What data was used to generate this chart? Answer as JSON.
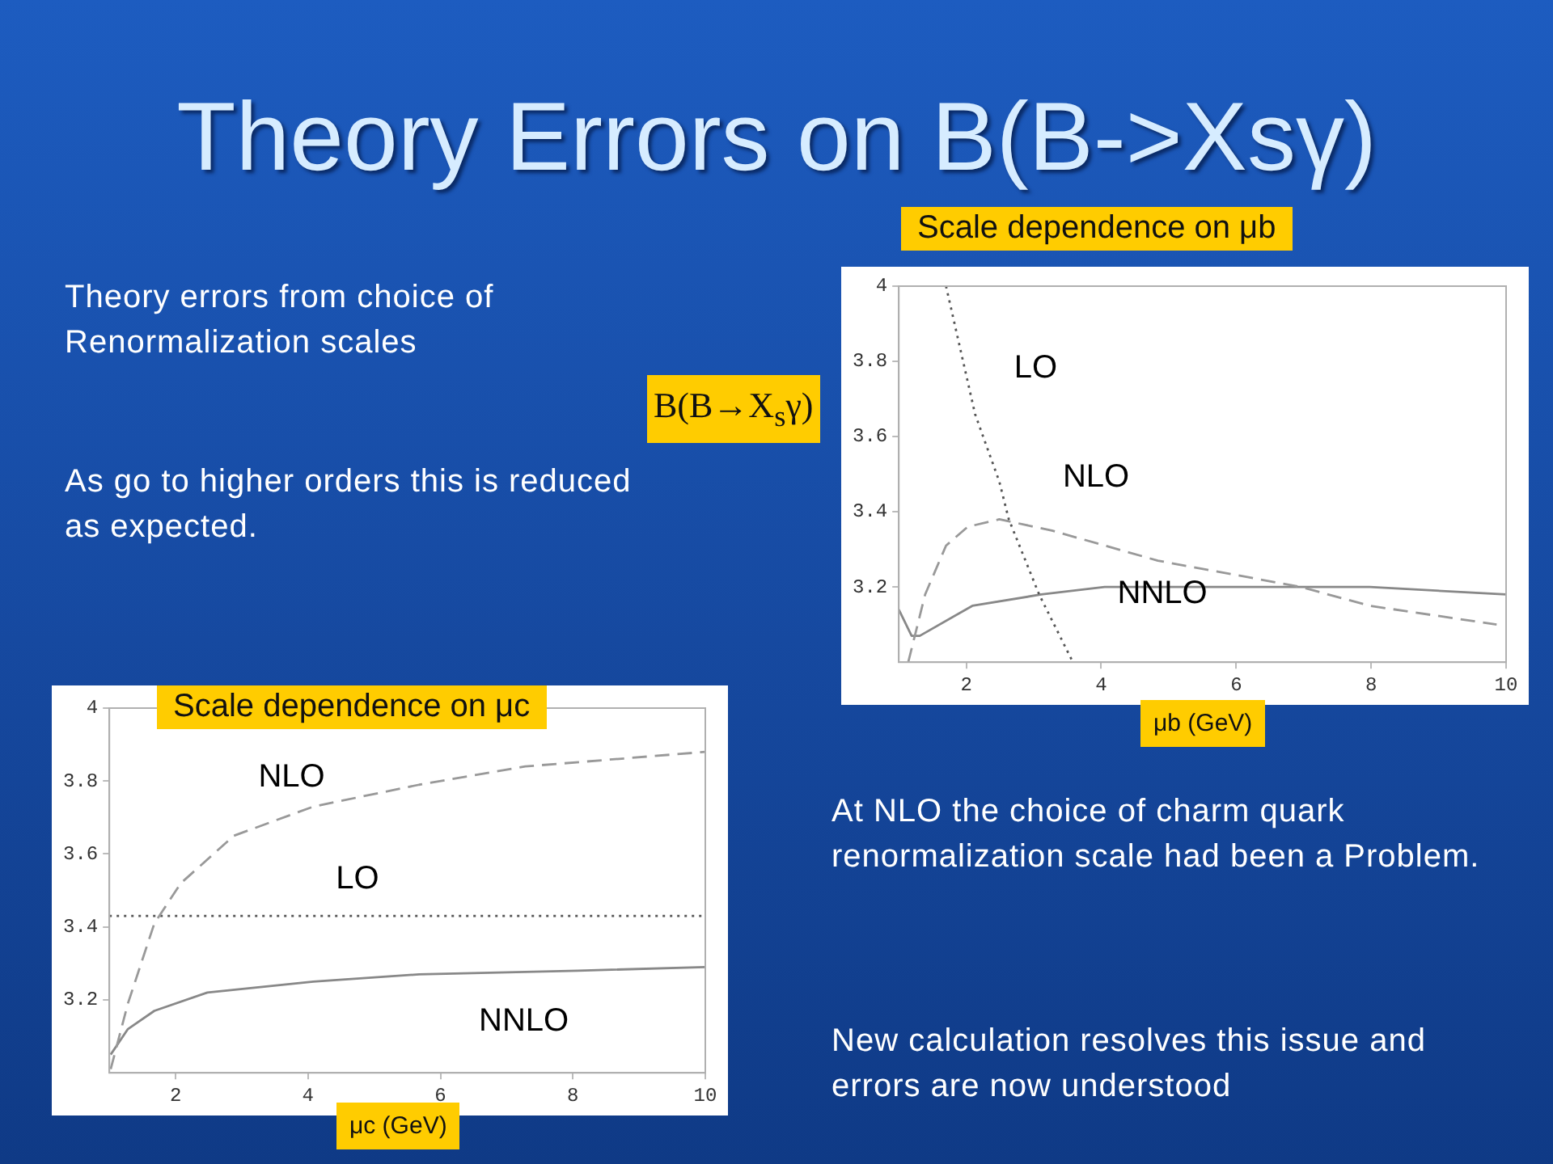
{
  "chart_data": [
    {
      "type": "other",
      "title": "Theory Errors on B(B->Xsγ)",
      "annotations": [
        "Theory errors from choice of Renormalization scales",
        "As go to higher orders this is reduced as expected.",
        "At NLO the choice of charm quark renormalization scale had been a Problem.",
        "New calculation resolves this issue and errors are now understood"
      ]
    },
    {
      "type": "line",
      "title": "Scale dependence on μb",
      "xlabel": "μb  (GeV)",
      "ylabel": "B(B→X$_{s}$γ)",
      "xlim": [
        1,
        10
      ],
      "ylim": [
        3,
        4
      ],
      "xticks": [
        2,
        4,
        6,
        8,
        10
      ],
      "yticks": [
        3.2,
        3.4,
        3.6,
        3.8,
        4
      ],
      "grid": false,
      "marker": "none",
      "series": [
        {
          "name": "LO",
          "color": "#555555",
          "line_style": "dotted",
          "x": [
            1.7,
            2.13,
            2.49,
            2.63,
            3.08,
            3.58
          ],
          "values": [
            4.0,
            3.66,
            3.48,
            3.38,
            3.18,
            3.0
          ]
        },
        {
          "name": "NLO",
          "color": "#999999",
          "line_style": "dashed",
          "x": [
            1.14,
            1.39,
            1.7,
            2.02,
            2.49,
            3.27,
            4.84,
            6.96,
            7.98,
            9.86
          ],
          "values": [
            3.0,
            3.18,
            3.31,
            3.36,
            3.38,
            3.35,
            3.27,
            3.2,
            3.15,
            3.1
          ]
        },
        {
          "name": "NNLO",
          "color": "#888888",
          "line_style": "solid",
          "x": [
            1.0,
            1.19,
            1.31,
            2.09,
            3.11,
            4.05,
            5.62,
            7.98,
            10
          ],
          "values": [
            3.14,
            3.07,
            3.07,
            3.15,
            3.18,
            3.2,
            3.2,
            3.2,
            3.18
          ]
        }
      ]
    },
    {
      "type": "line",
      "title": "Scale dependence on μc",
      "xlabel": "μc  (GeV)",
      "xlim": [
        1,
        10
      ],
      "ylim": [
        3,
        4
      ],
      "xticks": [
        2,
        4,
        6,
        8,
        10
      ],
      "yticks": [
        3.2,
        3.4,
        3.6,
        3.8,
        4
      ],
      "grid": false,
      "marker": "none",
      "series": [
        {
          "name": "NLO",
          "color": "#999999",
          "line_style": "dashed",
          "x": [
            1.02,
            1.28,
            1.68,
            2.08,
            2.88,
            4.08,
            5.68,
            7.28,
            10
          ],
          "values": [
            3.01,
            3.19,
            3.41,
            3.52,
            3.65,
            3.73,
            3.79,
            3.84,
            3.88
          ]
        },
        {
          "name": "LO",
          "color": "#555555",
          "line_style": "dotted",
          "x": [
            1,
            10
          ],
          "values": [
            3.43,
            3.43
          ]
        },
        {
          "name": "NNLO",
          "color": "#888888",
          "line_style": "solid",
          "x": [
            1.02,
            1.28,
            1.68,
            2.48,
            4.08,
            5.68,
            8.08,
            10
          ],
          "values": [
            3.05,
            3.12,
            3.17,
            3.22,
            3.25,
            3.27,
            3.28,
            3.29
          ]
        }
      ]
    }
  ]
}
